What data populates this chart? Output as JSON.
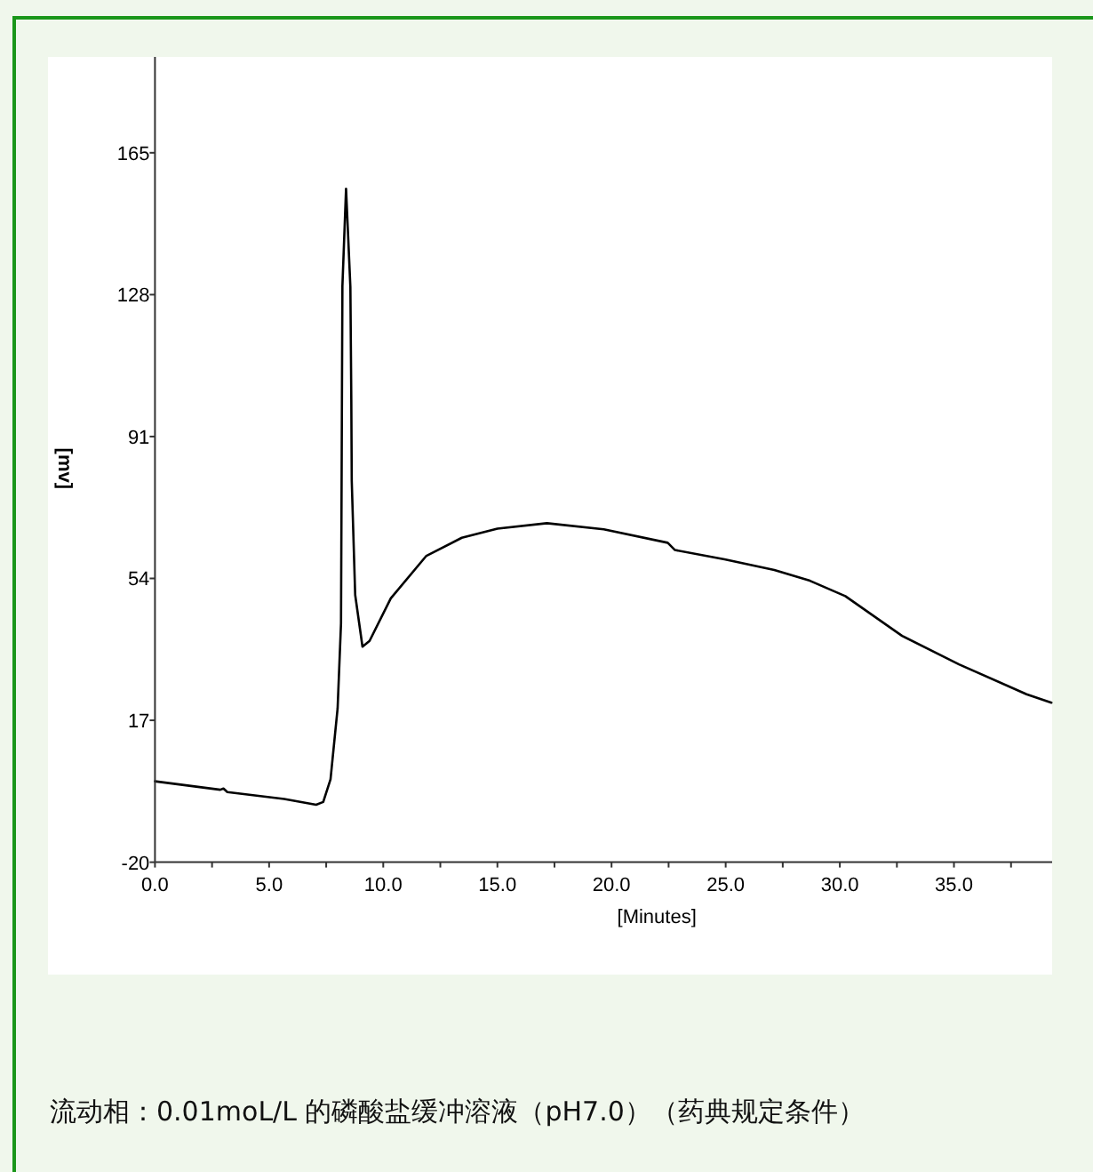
{
  "chart_data": {
    "type": "line",
    "xlabel": "[Minutes]",
    "ylabel": "[mv]",
    "x": [
      0,
      2.86,
      3.0,
      3.17,
      5.66,
      7.06,
      7.37,
      7.69,
      8.0,
      8.15,
      8.21,
      8.37,
      8.56,
      8.6,
      8.62,
      8.77,
      9.09,
      9.4,
      10.33,
      11.89,
      13.44,
      15.0,
      17.17,
      19.66,
      22.46,
      22.78,
      24.95,
      27.13,
      28.69,
      30.24,
      32.73,
      35.22,
      38.18,
      39.27
    ],
    "series": [
      {
        "color": "#000000",
        "values": [
          1.1,
          -1.1,
          -0.8,
          -1.7,
          -3.5,
          -5.0,
          -4.3,
          1.6,
          20.1,
          42.3,
          130.2,
          155.6,
          130,
          100.6,
          79.4,
          49.7,
          36.2,
          37.7,
          48.8,
          59.9,
          64.6,
          67.0,
          68.4,
          66.8,
          63.3,
          61.4,
          59.0,
          56.2,
          53.4,
          49.4,
          39.0,
          31.6,
          23.8,
          21.6
        ]
      }
    ],
    "xlim": [
      0,
      39.3
    ],
    "ylim": [
      -20,
      190
    ],
    "xticks": [
      {
        "value": 0,
        "label": "0.0"
      },
      {
        "value": 2.5,
        "label": null
      },
      {
        "value": 5,
        "label": "5.0"
      },
      {
        "value": 7.5,
        "label": null
      },
      {
        "value": 10,
        "label": "10.0"
      },
      {
        "value": 12.5,
        "label": null
      },
      {
        "value": 15,
        "label": "15.0"
      },
      {
        "value": 17.5,
        "label": null
      },
      {
        "value": 20,
        "label": "20.0"
      },
      {
        "value": 22.5,
        "label": null
      },
      {
        "value": 25,
        "label": "25.0"
      },
      {
        "value": 27.5,
        "label": null
      },
      {
        "value": 30,
        "label": "30.0"
      },
      {
        "value": 32.5,
        "label": null
      },
      {
        "value": 35,
        "label": "35.0"
      },
      {
        "value": 37.5,
        "label": null
      }
    ],
    "yticks": [
      -20,
      17,
      54,
      91,
      128,
      165
    ],
    "annotations": [
      "流动相：0.01moL/L 的磷酸盐缓冲溶液（pH7.0）（药典规定条件）"
    ]
  }
}
